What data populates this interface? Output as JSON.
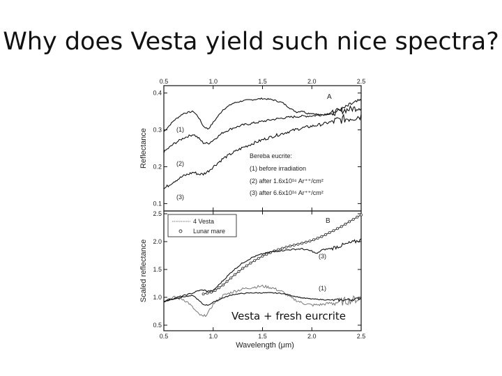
{
  "slide": {
    "title": "Why does Vesta yield such nice spectra?",
    "caption": "Vesta + fresh eurcrite"
  },
  "chart_data": [
    {
      "type": "line",
      "panel_label": "A",
      "ylabel": "Reflectance",
      "xlim": [
        0.5,
        2.5
      ],
      "ylim": [
        0.08,
        0.42
      ],
      "x_ticks": [
        "0.5",
        "1.0",
        "1.5",
        "2.0",
        "2.5"
      ],
      "y_ticks": [
        "0.4",
        "0.3",
        "0.2",
        "0.1"
      ],
      "legend_title": "Bereba eucrite:",
      "legend": [
        "(1) before irradiation",
        "(2) after 1.6x10¹⁶ Ar⁺⁺/cm²",
        "(3) after 6.6x10¹⁶ Ar⁺⁺/cm²"
      ],
      "series": [
        {
          "name": "(1)",
          "color": "#111111",
          "noise": 0.002,
          "x": [
            0.5,
            0.6,
            0.7,
            0.8,
            0.85,
            0.9,
            0.95,
            1.0,
            1.1,
            1.2,
            1.3,
            1.4,
            1.5,
            1.6,
            1.7,
            1.8,
            1.85,
            1.9,
            1.95,
            2.0,
            2.1,
            2.2,
            2.3,
            2.4,
            2.5
          ],
          "y": [
            0.295,
            0.325,
            0.345,
            0.35,
            0.335,
            0.31,
            0.302,
            0.32,
            0.355,
            0.372,
            0.379,
            0.382,
            0.385,
            0.382,
            0.374,
            0.355,
            0.348,
            0.352,
            0.345,
            0.345,
            0.34,
            0.345,
            0.355,
            0.37,
            0.38
          ]
        },
        {
          "name": "(2)",
          "color": "#111111",
          "noise": 0.003,
          "x": [
            0.5,
            0.6,
            0.7,
            0.8,
            0.85,
            0.9,
            0.95,
            1.0,
            1.1,
            1.2,
            1.3,
            1.4,
            1.5,
            1.6,
            1.7,
            1.8,
            1.9,
            2.0,
            2.1,
            2.2,
            2.3,
            2.4,
            2.5
          ],
          "y": [
            0.24,
            0.262,
            0.278,
            0.288,
            0.278,
            0.265,
            0.263,
            0.272,
            0.293,
            0.305,
            0.313,
            0.318,
            0.323,
            0.328,
            0.332,
            0.335,
            0.337,
            0.338,
            0.341,
            0.346,
            0.352,
            0.357,
            0.362
          ]
        },
        {
          "name": "(3)",
          "color": "#111111",
          "noise": 0.004,
          "x": [
            0.5,
            0.6,
            0.7,
            0.8,
            0.85,
            0.9,
            0.95,
            1.0,
            1.1,
            1.2,
            1.3,
            1.4,
            1.5,
            1.6,
            1.7,
            1.8,
            1.9,
            2.0,
            2.1,
            2.2,
            2.3,
            2.4,
            2.5
          ],
          "y": [
            0.14,
            0.16,
            0.175,
            0.185,
            0.18,
            0.18,
            0.188,
            0.2,
            0.222,
            0.238,
            0.252,
            0.263,
            0.273,
            0.282,
            0.29,
            0.298,
            0.305,
            0.31,
            0.315,
            0.322,
            0.328,
            0.333,
            0.338
          ]
        }
      ],
      "annotations": [
        "(1)",
        "(2)",
        "(3)"
      ]
    },
    {
      "type": "line",
      "panel_label": "B",
      "xlabel": "Wavelength (μm)",
      "ylabel": "Scaled reflectance",
      "xlim": [
        0.5,
        2.5
      ],
      "ylim": [
        0.4,
        2.55
      ],
      "x_ticks": [
        "0.5",
        "1.0",
        "1.5",
        "2.0",
        "2.5"
      ],
      "y_ticks": [
        "2.5",
        "2.0",
        "1.5",
        "1.0",
        "0.5"
      ],
      "legend": [
        "4 Vesta",
        "Lunar mare"
      ],
      "series": [
        {
          "name": "4 Vesta",
          "color": "#777777",
          "noise": 0.025,
          "x": [
            0.5,
            0.6,
            0.7,
            0.75,
            0.8,
            0.85,
            0.9,
            0.95,
            1.0,
            1.1,
            1.2,
            1.3,
            1.4,
            1.5,
            1.6,
            1.7,
            1.8,
            1.9,
            2.0,
            2.1,
            2.2,
            2.3,
            2.4,
            2.5
          ],
          "y": [
            0.95,
            1.0,
            0.96,
            0.9,
            0.8,
            0.7,
            0.65,
            0.72,
            0.88,
            1.03,
            1.1,
            1.15,
            1.18,
            1.2,
            1.17,
            1.1,
            0.98,
            0.9,
            0.86,
            0.87,
            0.9,
            0.92,
            0.95,
            0.98
          ]
        },
        {
          "name": "(1)",
          "color": "#111111",
          "noise": 0.008,
          "x": [
            0.5,
            0.6,
            0.7,
            0.8,
            0.85,
            0.9,
            0.95,
            1.0,
            1.1,
            1.2,
            1.3,
            1.4,
            1.5,
            1.6,
            1.7,
            1.8,
            1.9,
            2.0,
            2.1,
            2.2,
            2.3,
            2.4,
            2.5
          ],
          "y": [
            0.92,
            0.97,
            1.01,
            1.03,
            0.95,
            0.87,
            0.86,
            0.91,
            0.99,
            1.05,
            1.07,
            1.08,
            1.08,
            1.08,
            1.07,
            1.03,
            0.99,
            0.97,
            0.96,
            0.95,
            0.95,
            0.96,
            0.98
          ]
        },
        {
          "name": "Lunar mare",
          "color": "#333333",
          "markers": true,
          "noise": 0.0,
          "x": [
            0.9,
            1.0,
            1.1,
            1.2,
            1.3,
            1.4,
            1.5,
            1.6,
            1.7,
            1.8,
            1.9,
            2.0,
            2.1,
            2.2,
            2.3,
            2.4,
            2.5
          ],
          "y": [
            1.06,
            1.1,
            1.22,
            1.38,
            1.52,
            1.64,
            1.74,
            1.82,
            1.88,
            1.93,
            1.97,
            2.02,
            2.09,
            2.18,
            2.27,
            2.38,
            2.48
          ]
        },
        {
          "name": "(3)",
          "color": "#111111",
          "noise": 0.012,
          "x": [
            0.5,
            0.6,
            0.7,
            0.8,
            0.85,
            0.9,
            0.95,
            1.0,
            1.1,
            1.2,
            1.3,
            1.4,
            1.5,
            1.6,
            1.7,
            1.8,
            1.9,
            2.0,
            2.05,
            2.1,
            2.2,
            2.3,
            2.4,
            2.5
          ],
          "y": [
            0.93,
            0.98,
            1.03,
            1.08,
            1.12,
            1.13,
            1.11,
            1.12,
            1.3,
            1.48,
            1.62,
            1.72,
            1.78,
            1.82,
            1.84,
            1.86,
            1.87,
            1.83,
            1.78,
            1.85,
            1.88,
            1.93,
            1.98,
            2.03
          ]
        }
      ],
      "annotations": [
        "(3)",
        "(1)"
      ]
    }
  ]
}
